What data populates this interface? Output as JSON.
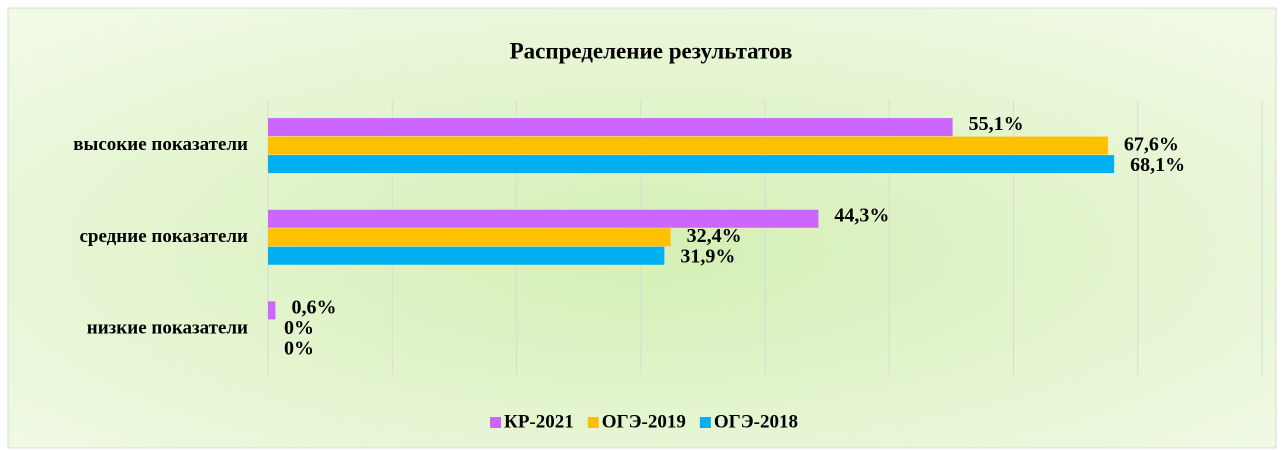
{
  "chart_data": {
    "type": "barh",
    "title": "Распределение результатов",
    "categories": [
      "высокие показатели",
      "средние показатели",
      "низкие показатели"
    ],
    "series": [
      {
        "name": "КР-2021",
        "color": "#cc66ff",
        "values": [
          55.1,
          44.3,
          0.6
        ],
        "value_labels": [
          "55,1%",
          "44,3%",
          "0,6%"
        ]
      },
      {
        "name": "ОГЭ-2019",
        "color": "#ffc000",
        "values": [
          67.6,
          32.4,
          0
        ],
        "value_labels": [
          "67,6%",
          "32,4%",
          "0%"
        ]
      },
      {
        "name": "ОГЭ-2018",
        "color": "#00b0f0",
        "values": [
          68.1,
          31.9,
          0
        ],
        "value_labels": [
          "68,1%",
          "31,9%",
          "0%"
        ]
      }
    ],
    "xlim": [
      0,
      80
    ],
    "xticks": [
      0,
      10,
      20,
      30,
      40,
      50,
      60,
      70,
      80
    ],
    "grid": true,
    "legend": "bottom"
  }
}
